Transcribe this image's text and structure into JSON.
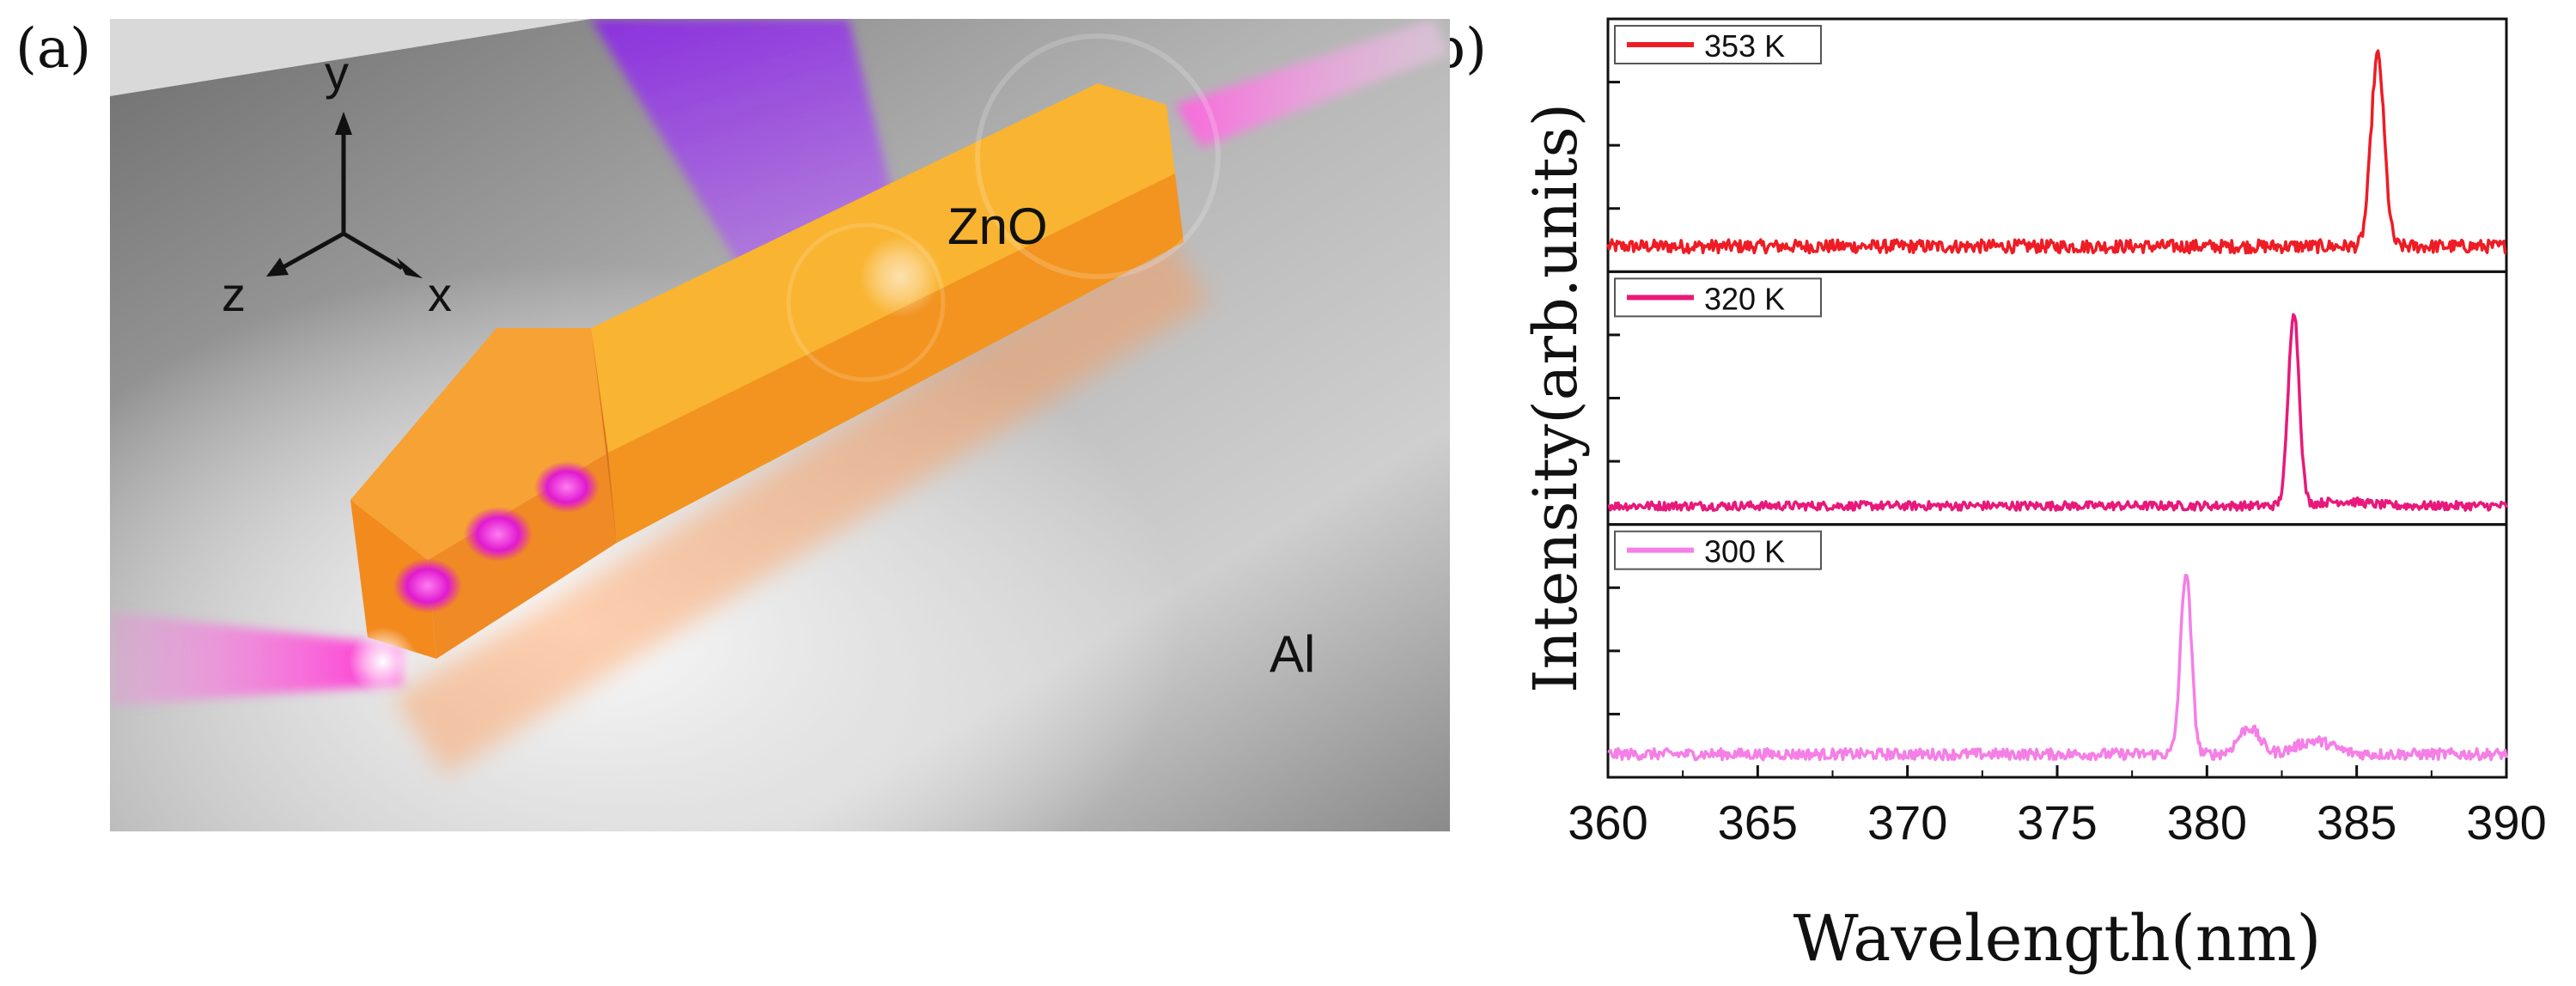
{
  "panel_a": {
    "letter": "(a)",
    "axis_labels": {
      "y": "y",
      "z": "z",
      "x": "x"
    },
    "material_labels": {
      "nanowire": "ZnO",
      "substrate": "Al"
    },
    "colors": {
      "nanowire": "#f5901e",
      "laser": "#9b30ff",
      "emission": "#ff33cc",
      "substrate": "#9a9a9a"
    }
  },
  "panel_b": {
    "letter": "(b)"
  },
  "chart_data": {
    "type": "line",
    "layout": "stacked-panels",
    "xlabel": "Wavelength(nm)",
    "ylabel": "Intensity(arb.units)",
    "xlim": [
      360,
      390
    ],
    "xticks": [
      360,
      365,
      370,
      375,
      380,
      385,
      390
    ],
    "yticks_labeled": false,
    "panels": [
      {
        "name": "353 K",
        "color": "#ee1c25",
        "baseline": 0.06,
        "noise": 0.03,
        "peaks": [
          {
            "x": 385.7,
            "height": 0.86,
            "width": 0.22
          }
        ]
      },
      {
        "name": "320 K",
        "color": "#e8197a",
        "baseline": 0.03,
        "noise": 0.02,
        "peaks": [
          {
            "x": 382.9,
            "height": 0.88,
            "width": 0.18
          },
          {
            "x": 384.5,
            "height": 0.02,
            "width": 0.8
          }
        ]
      },
      {
        "name": "300 K",
        "color": "#f57fe6",
        "baseline": 0.05,
        "noise": 0.025,
        "peaks": [
          {
            "x": 379.3,
            "height": 0.82,
            "width": 0.18
          },
          {
            "x": 381.4,
            "height": 0.12,
            "width": 0.35
          },
          {
            "x": 383.6,
            "height": 0.06,
            "width": 0.6
          }
        ]
      }
    ],
    "grid": false,
    "legend_placement": "top-left of each panel"
  }
}
